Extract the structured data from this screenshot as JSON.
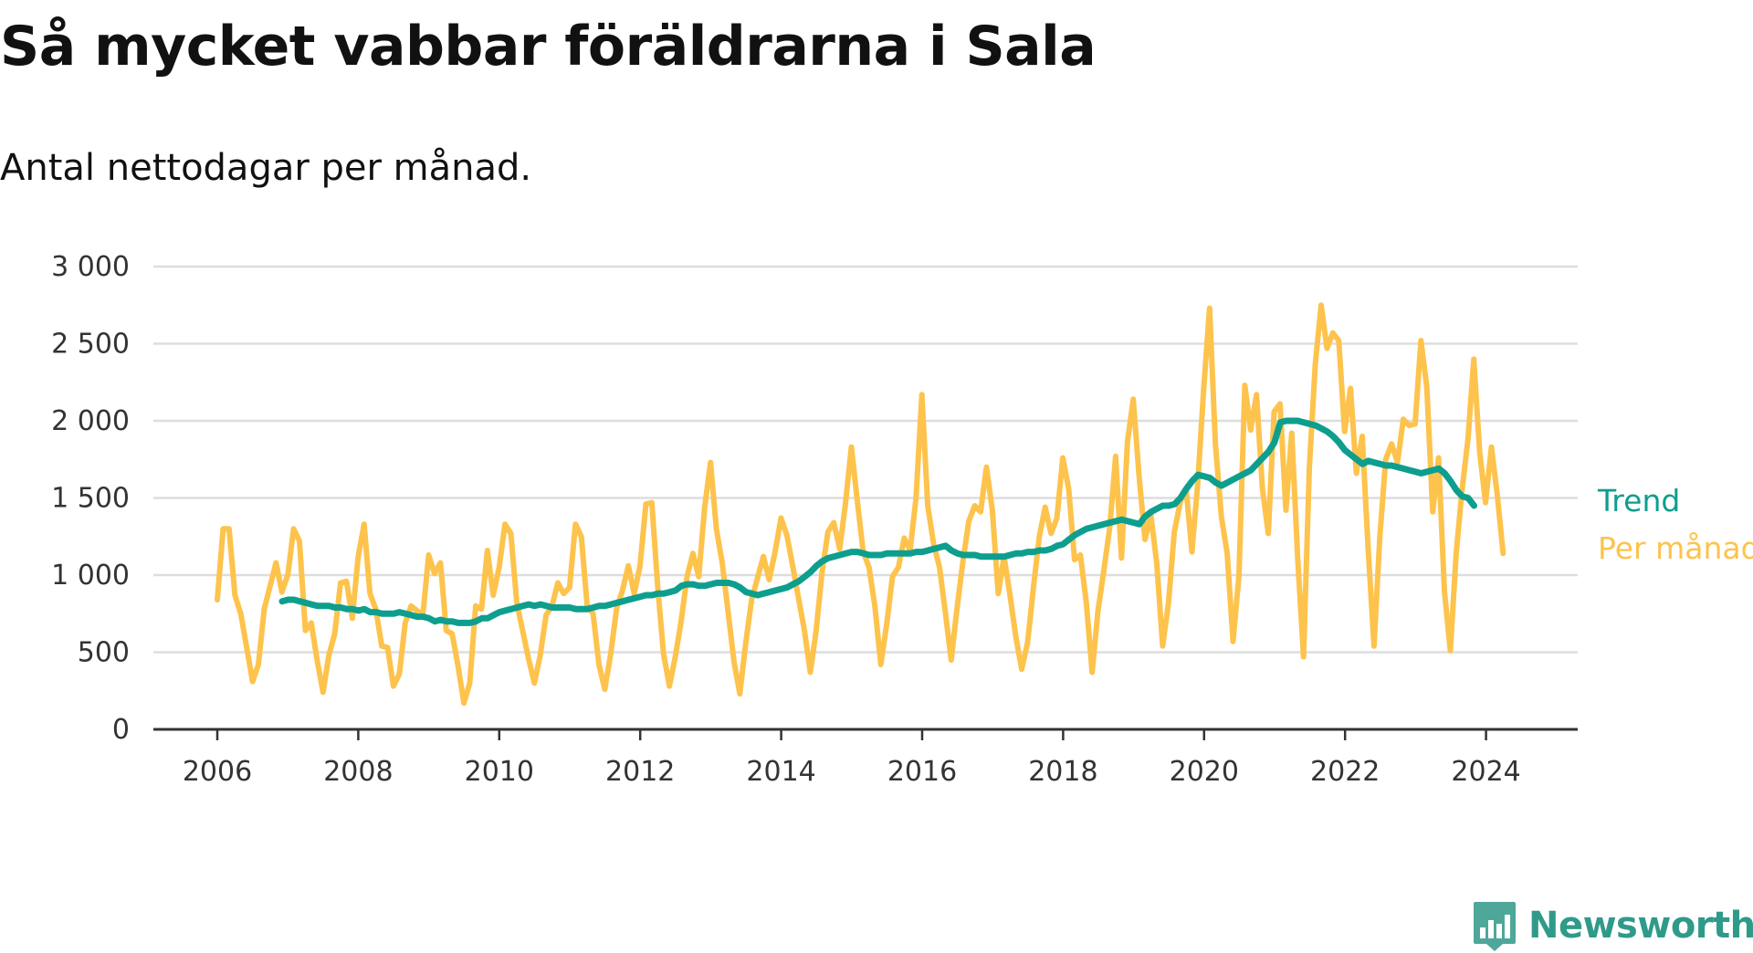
{
  "title": "Så mycket vabbar föräldrarna i Sala",
  "subtitle": "Antal nettodagar per månad.",
  "brand": {
    "name": "Newsworthy",
    "color": "#2f9a8a",
    "icon": "bar-chart-speech-bubble-icon"
  },
  "colors": {
    "trend": "#0e9e8e",
    "monthly": "#fdc34c",
    "grid": "#dddddd",
    "axis": "#333333"
  },
  "chart_data": {
    "type": "line",
    "x_unit": "year",
    "xlim": [
      2006,
      2024.6
    ],
    "ylim": [
      0,
      3000
    ],
    "y_ticks": [
      0,
      500,
      1000,
      1500,
      2000,
      2500,
      3000
    ],
    "y_tick_labels": [
      "0",
      "500",
      "1 000",
      "1 500",
      "2 000",
      "2 500",
      "3 000"
    ],
    "x_ticks": [
      2006,
      2008,
      2010,
      2012,
      2014,
      2016,
      2018,
      2020,
      2022,
      2024
    ],
    "x_tick_labels": [
      "2006",
      "2008",
      "2010",
      "2012",
      "2014",
      "2016",
      "2018",
      "2020",
      "2022",
      "2024"
    ],
    "grid": "horizontal",
    "series": [
      {
        "name": "Per månad",
        "key": "monthly",
        "start": 2006.0,
        "step": 0.0833,
        "values": [
          840,
          1300,
          1300,
          870,
          750,
          530,
          310,
          420,
          780,
          930,
          1080,
          890,
          1000,
          1300,
          1220,
          640,
          690,
          450,
          240,
          480,
          620,
          950,
          960,
          720,
          1120,
          1330,
          880,
          780,
          540,
          530,
          280,
          360,
          690,
          800,
          770,
          740,
          1130,
          1010,
          1080,
          640,
          620,
          410,
          170,
          300,
          800,
          780,
          1160,
          870,
          1050,
          1330,
          1270,
          820,
          640,
          460,
          300,
          480,
          740,
          800,
          950,
          880,
          920,
          1330,
          1250,
          800,
          750,
          420,
          260,
          490,
          780,
          900,
          1060,
          880,
          1060,
          1460,
          1470,
          930,
          490,
          280,
          470,
          700,
          990,
          1140,
          990,
          1440,
          1730,
          1300,
          1080,
          760,
          440,
          230,
          560,
          840,
          980,
          1120,
          970,
          1150,
          1370,
          1260,
          1060,
          850,
          640,
          370,
          640,
          1020,
          1280,
          1340,
          1170,
          1470,
          1830,
          1480,
          1150,
          1050,
          800,
          420,
          680,
          990,
          1050,
          1240,
          1160,
          1500,
          2170,
          1450,
          1200,
          1050,
          760,
          450,
          790,
          1090,
          1350,
          1450,
          1410,
          1700,
          1420,
          880,
          1120,
          870,
          600,
          390,
          560,
          920,
          1250,
          1440,
          1270,
          1370,
          1760,
          1560,
          1100,
          1130,
          820,
          370,
          770,
          1030,
          1310,
          1770,
          1110,
          1860,
          2140,
          1640,
          1230,
          1390,
          1080,
          540,
          820,
          1280,
          1470,
          1560,
          1150,
          1600,
          2210,
          2730,
          1850,
          1380,
          1140,
          570,
          1000,
          2230,
          1940,
          2170,
          1560,
          1270,
          2060,
          2110,
          1420,
          1920,
          1110,
          470,
          1700,
          2370,
          2750,
          2470,
          2570,
          2520,
          1930,
          2210,
          1660,
          1900,
          1180,
          540,
          1250,
          1750,
          1850,
          1730,
          2010,
          1970,
          1980,
          2520,
          2220,
          1410,
          1760,
          900,
          510,
          1140,
          1550,
          1880,
          2400,
          1800,
          1470,
          1830,
          1520,
          1140
        ]
      },
      {
        "name": "Trend",
        "key": "trend",
        "start": 2006.92,
        "step": 0.0833,
        "values": [
          830,
          840,
          840,
          830,
          820,
          810,
          800,
          800,
          800,
          790,
          790,
          780,
          780,
          770,
          780,
          760,
          760,
          750,
          750,
          750,
          760,
          750,
          740,
          730,
          730,
          720,
          700,
          710,
          700,
          700,
          690,
          690,
          690,
          700,
          720,
          720,
          740,
          760,
          770,
          780,
          790,
          800,
          810,
          800,
          810,
          800,
          790,
          790,
          790,
          790,
          780,
          780,
          780,
          790,
          800,
          800,
          810,
          820,
          830,
          840,
          850,
          860,
          870,
          870,
          880,
          880,
          890,
          900,
          930,
          940,
          940,
          930,
          930,
          940,
          950,
          950,
          950,
          940,
          920,
          890,
          880,
          870,
          880,
          890,
          900,
          910,
          920,
          940,
          960,
          990,
          1020,
          1060,
          1090,
          1110,
          1120,
          1130,
          1140,
          1150,
          1150,
          1140,
          1130,
          1130,
          1130,
          1140,
          1140,
          1140,
          1140,
          1140,
          1150,
          1150,
          1160,
          1170,
          1180,
          1190,
          1160,
          1140,
          1130,
          1130,
          1130,
          1120,
          1120,
          1120,
          1120,
          1120,
          1130,
          1140,
          1140,
          1150,
          1150,
          1160,
          1160,
          1170,
          1190,
          1200,
          1230,
          1260,
          1280,
          1300,
          1310,
          1320,
          1330,
          1340,
          1350,
          1360,
          1350,
          1340,
          1330,
          1380,
          1410,
          1430,
          1450,
          1450,
          1460,
          1500,
          1560,
          1610,
          1650,
          1640,
          1630,
          1600,
          1580,
          1600,
          1620,
          1640,
          1660,
          1680,
          1720,
          1760,
          1800,
          1860,
          1990,
          2000,
          2000,
          2000,
          1990,
          1980,
          1970,
          1950,
          1930,
          1900,
          1860,
          1810,
          1780,
          1750,
          1720,
          1740,
          1730,
          1720,
          1710,
          1710,
          1700,
          1690,
          1680,
          1670,
          1660,
          1670,
          1680,
          1690,
          1660,
          1610,
          1550,
          1510,
          1500,
          1450
        ]
      }
    ]
  }
}
